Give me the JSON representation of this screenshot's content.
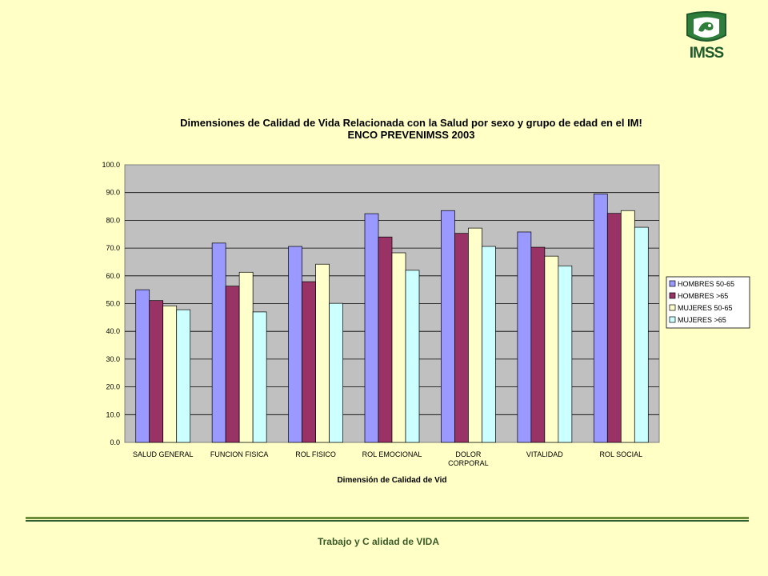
{
  "logo": {
    "text": "IMSS",
    "icon": "imss-eagle-logo"
  },
  "footer": {
    "text": "Trabajo y C alidad de VIDA"
  },
  "chart_data": {
    "type": "bar",
    "title_lines": [
      "Dimensiones de Calidad de Vida Relacionada con la Salud por sexo y grupo de edad en el IM!",
      "ENCO PREVENIMSS 2003"
    ],
    "xlabel": "Dimensión de Calidad de Vid",
    "ylabel": "",
    "ylim": [
      0,
      100
    ],
    "yticks": [
      "0.0",
      "10.0",
      "20.0",
      "30.0",
      "40.0",
      "50.0",
      "60.0",
      "70.0",
      "80.0",
      "90.0",
      "100.0"
    ],
    "categories": [
      "SALUD GENERAL",
      "FUNCION FISICA",
      "ROL FISICO",
      "ROL EMOCIONAL",
      "DOLOR CORPORAL",
      "VITALIDAD",
      "ROL SOCIAL"
    ],
    "category_lines": [
      [
        "SALUD GENERAL"
      ],
      [
        "FUNCION FISICA"
      ],
      [
        "ROL FISICO"
      ],
      [
        "ROL EMOCIONAL"
      ],
      [
        "DOLOR",
        "CORPORAL"
      ],
      [
        "VITALIDAD"
      ],
      [
        "ROL SOCIAL"
      ]
    ],
    "series": [
      {
        "name": "HOMBRES 50-65",
        "color": "#9999ff",
        "values": [
          55.0,
          71.8,
          70.6,
          82.4,
          83.5,
          75.8,
          89.5
        ]
      },
      {
        "name": "HOMBRES >65",
        "color": "#993366",
        "values": [
          51.1,
          56.3,
          57.9,
          74.0,
          75.3,
          70.3,
          82.5
        ]
      },
      {
        "name": "MUJERES 50-65",
        "color": "#ffffcc",
        "values": [
          49.2,
          61.3,
          64.2,
          68.3,
          77.2,
          67.1,
          83.5
        ]
      },
      {
        "name": "MUJERES >65",
        "color": "#ccffff",
        "values": [
          47.8,
          47.0,
          50.1,
          62.0,
          70.6,
          63.6,
          77.5
        ]
      }
    ],
    "plot_background": "#c0c0c0",
    "grid": true,
    "legend_position": "right"
  }
}
